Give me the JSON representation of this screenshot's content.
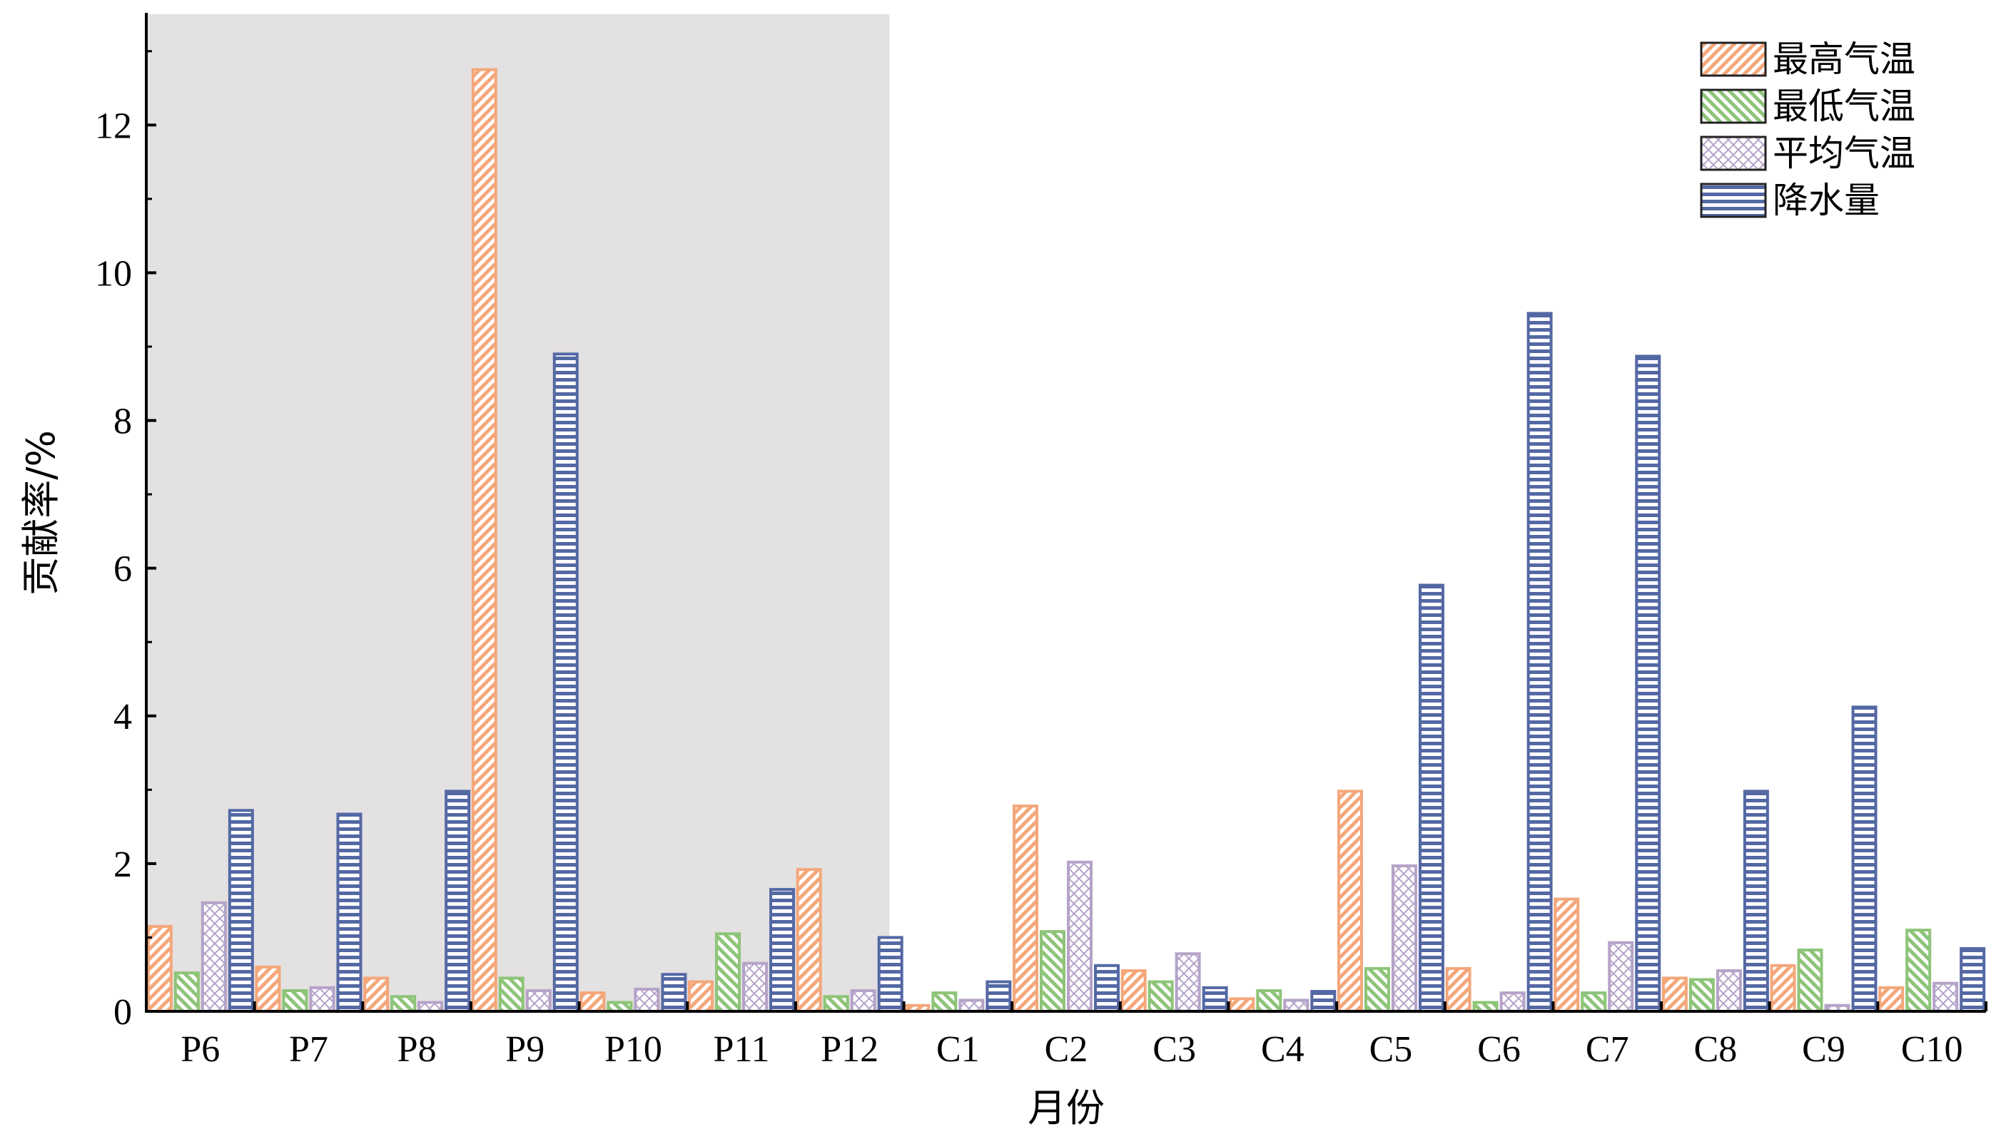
{
  "chart_data": {
    "type": "bar",
    "xlabel": "月份",
    "ylabel": "贡献率/%",
    "ylim": [
      0,
      13.5
    ],
    "yticks": [
      "0",
      "2",
      "4",
      "6",
      "8",
      "10",
      "12"
    ],
    "categories": [
      "P6",
      "P7",
      "P8",
      "P9",
      "P10",
      "P11",
      "P12",
      "C1",
      "C2",
      "C3",
      "C4",
      "C5",
      "C6",
      "C7",
      "C8",
      "C9",
      "C10"
    ],
    "shaded_categories": [
      "P6",
      "P7",
      "P8",
      "P9",
      "P10",
      "P11",
      "P12"
    ],
    "shade_color": "#e3e1e1",
    "legend_position": "top-right",
    "grid": false,
    "series": [
      {
        "name": "最高气温",
        "color": "#f4a77a",
        "pattern": "diagonal",
        "values": [
          1.15,
          0.6,
          0.45,
          12.75,
          0.25,
          0.4,
          1.92,
          0.08,
          2.78,
          0.55,
          0.17,
          2.98,
          0.58,
          1.52,
          0.45,
          0.62,
          0.32
        ]
      },
      {
        "name": "最低气温",
        "color": "#8ec479",
        "pattern": "anti-diagonal",
        "values": [
          0.52,
          0.28,
          0.2,
          0.45,
          0.12,
          1.05,
          0.2,
          0.25,
          1.08,
          0.4,
          0.28,
          0.58,
          0.12,
          0.25,
          0.43,
          0.83,
          1.1
        ]
      },
      {
        "name": "平均气温",
        "color": "#b5a3c8",
        "pattern": "crosshatch",
        "values": [
          1.47,
          0.32,
          0.12,
          0.28,
          0.3,
          0.65,
          0.28,
          0.15,
          2.02,
          0.78,
          0.15,
          1.97,
          0.25,
          0.93,
          0.55,
          0.08,
          0.38
        ]
      },
      {
        "name": "降水量",
        "color": "#5468a4",
        "pattern": "horizontal",
        "values": [
          2.72,
          2.67,
          2.98,
          8.9,
          0.5,
          1.65,
          1.0,
          0.4,
          0.62,
          0.32,
          0.27,
          5.77,
          9.45,
          8.87,
          2.98,
          4.12,
          0.85
        ]
      }
    ]
  }
}
